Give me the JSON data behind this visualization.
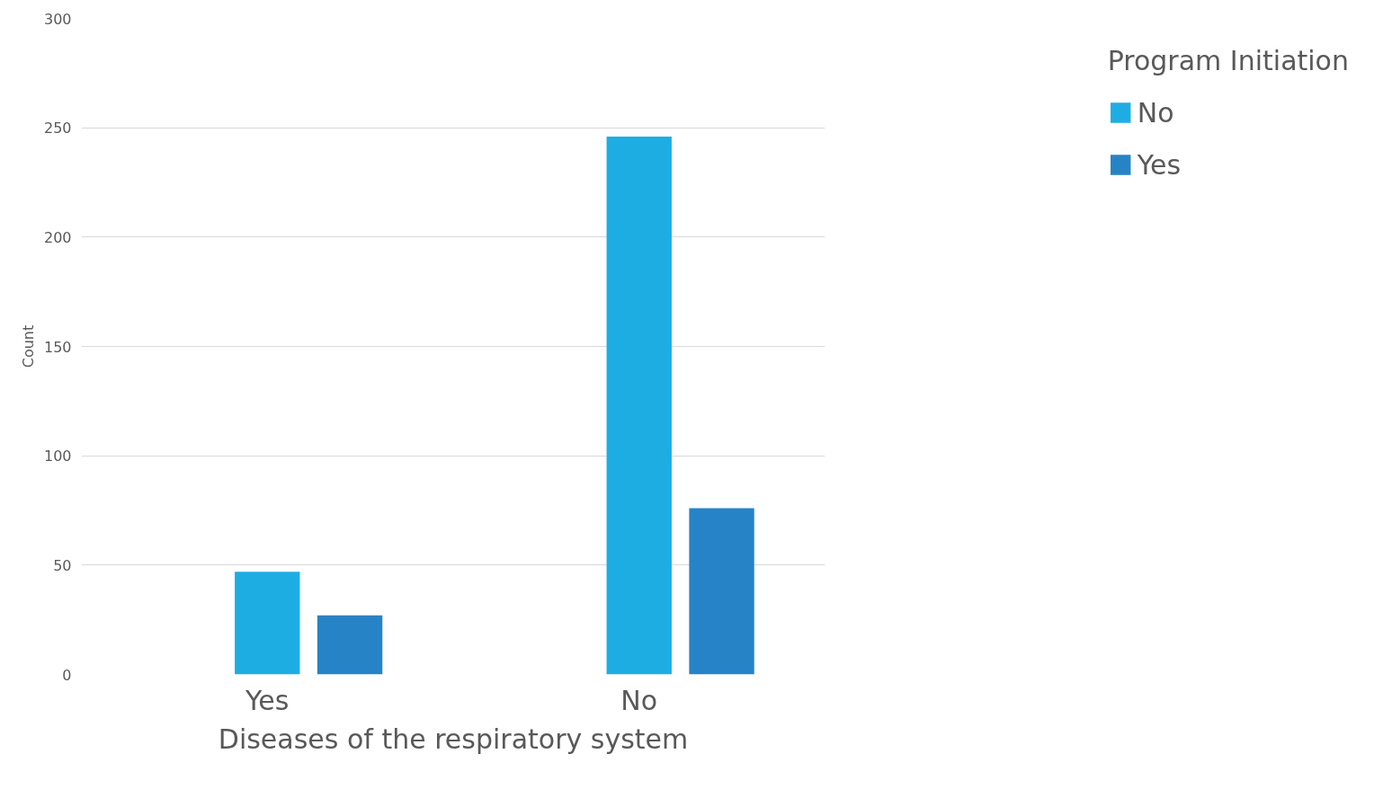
{
  "chart_data": {
    "type": "bar",
    "xlabel": "Diseases of the respiratory system",
    "ylabel": "Count",
    "legend_title": "Program Initiation",
    "categories": [
      "Yes",
      "No"
    ],
    "series": [
      {
        "name": "No",
        "color": "#1eade3",
        "values": [
          47,
          246
        ]
      },
      {
        "name": "Yes",
        "color": "#2683c6",
        "values": [
          27,
          76
        ]
      }
    ],
    "ylim": [
      0,
      300
    ],
    "yticks": [
      0,
      50,
      100,
      150,
      200,
      250,
      300
    ],
    "grid": "y",
    "legend": "right"
  }
}
